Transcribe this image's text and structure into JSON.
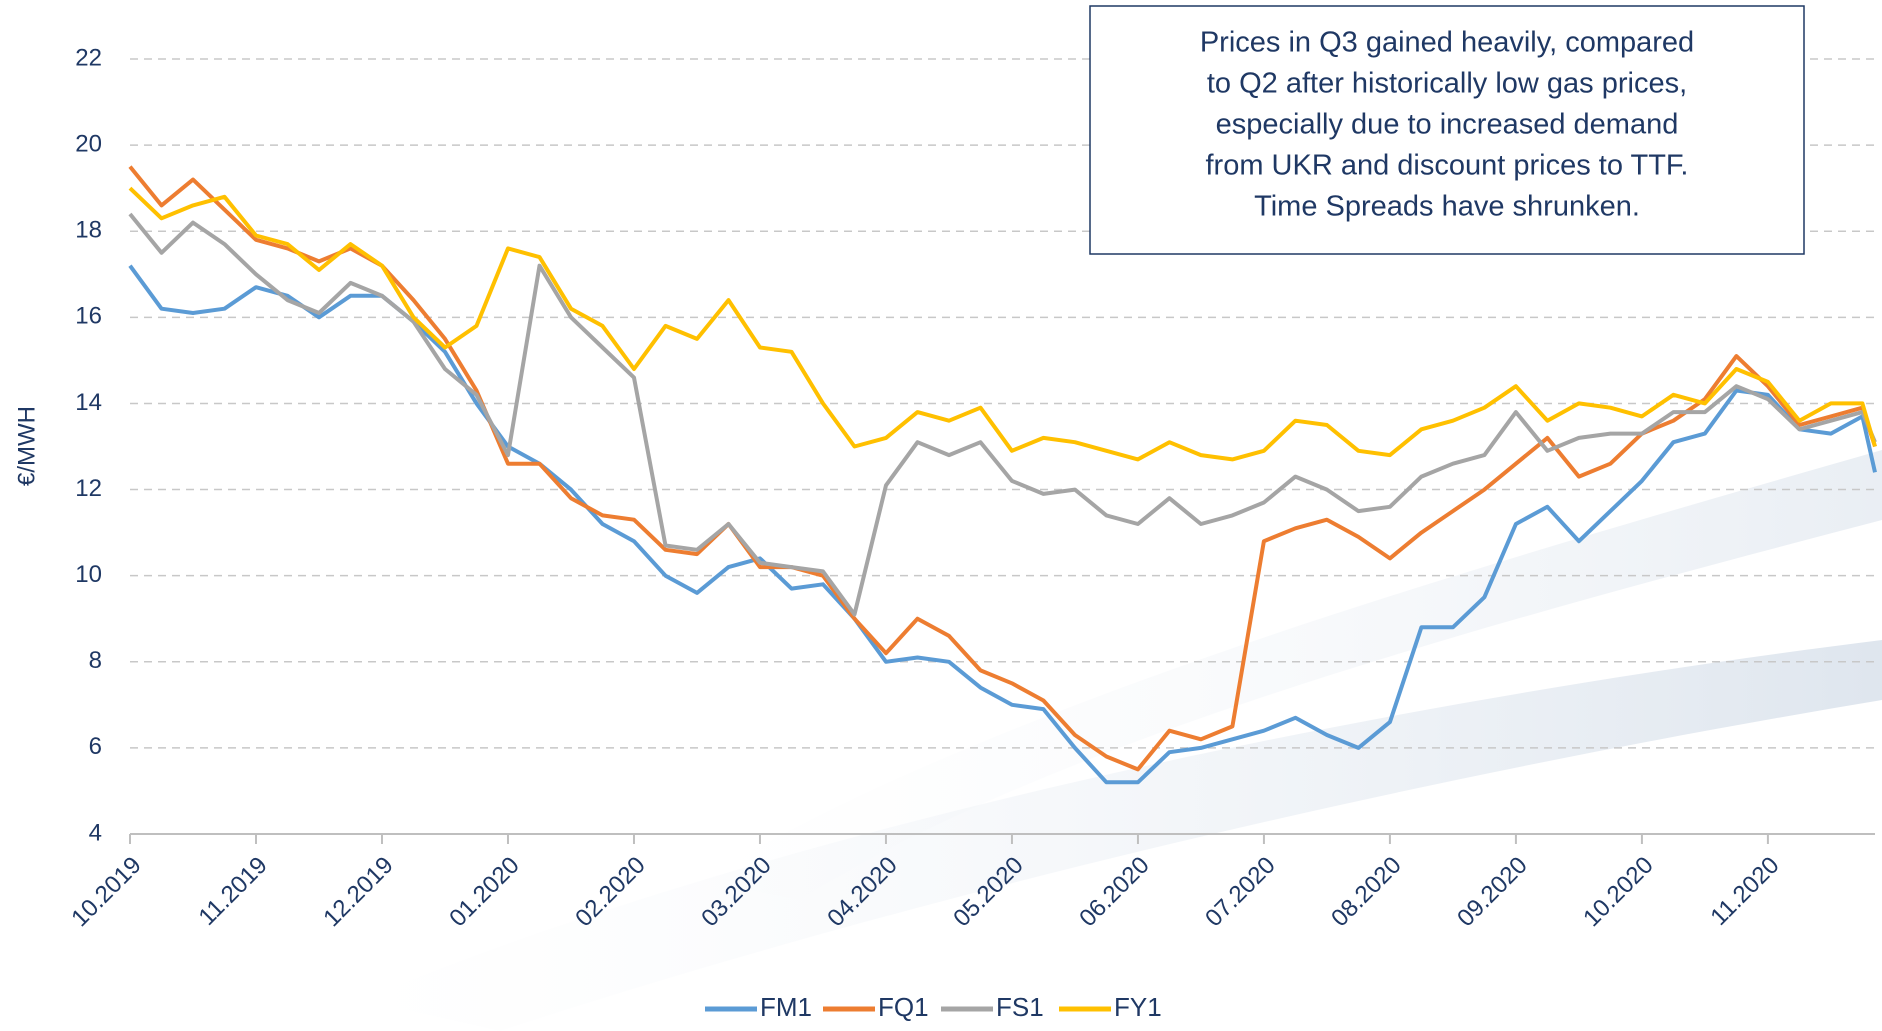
{
  "chart_data": {
    "type": "line",
    "ylabel": "€/MWH",
    "annotation": [
      "Prices in Q3 gained heavily, compared",
      "to Q2 after historically low gas prices,",
      "especially due to increased demand",
      "from UKR and discount prices to TTF.",
      "Time Spreads have shrunken."
    ],
    "x": [
      0,
      0.25,
      0.5,
      0.75,
      1,
      1.25,
      1.5,
      1.75,
      2,
      2.25,
      2.5,
      2.75,
      3,
      3.25,
      3.5,
      3.75,
      4,
      4.25,
      4.5,
      4.75,
      5,
      5.25,
      5.5,
      5.75,
      6,
      6.25,
      6.5,
      6.75,
      7,
      7.25,
      7.5,
      7.75,
      8,
      8.25,
      8.5,
      8.75,
      9,
      9.25,
      9.5,
      9.75,
      10,
      10.25,
      10.5,
      10.75,
      11,
      11.25,
      11.5,
      11.75,
      12,
      12.25,
      12.5,
      12.75,
      13,
      13.25,
      13.5,
      13.75,
      13.85
    ],
    "series": [
      {
        "name": "FM1",
        "color": "#5b9bd5",
        "values": [
          17.2,
          16.2,
          16.1,
          16.2,
          16.7,
          16.5,
          16.0,
          16.5,
          16.5,
          15.9,
          15.2,
          14.0,
          13.0,
          12.6,
          12.0,
          11.2,
          10.8,
          10.0,
          9.6,
          10.2,
          10.4,
          9.7,
          9.8,
          9.0,
          8.0,
          8.1,
          8.0,
          7.4,
          7.0,
          6.9,
          6.0,
          5.2,
          5.2,
          5.9,
          6.0,
          6.2,
          6.4,
          6.7,
          6.3,
          6.0,
          6.6,
          8.8,
          8.8,
          9.5,
          11.2,
          11.6,
          10.8,
          11.5,
          12.2,
          13.1,
          13.3,
          14.3,
          14.2,
          13.4,
          13.3,
          13.7,
          12.4
        ]
      },
      {
        "name": "FQ1",
        "color": "#ed7d31",
        "values": [
          19.5,
          18.6,
          19.2,
          18.5,
          17.8,
          17.6,
          17.3,
          17.6,
          17.2,
          16.4,
          15.5,
          14.3,
          12.6,
          12.6,
          11.8,
          11.4,
          11.3,
          10.6,
          10.5,
          11.2,
          10.2,
          10.2,
          10.0,
          9.0,
          8.2,
          9.0,
          8.6,
          7.8,
          7.5,
          7.1,
          6.3,
          5.8,
          5.5,
          6.4,
          6.2,
          6.5,
          10.8,
          11.1,
          11.3,
          10.9,
          10.4,
          11.0,
          11.5,
          12.0,
          12.6,
          13.2,
          12.3,
          12.6,
          13.3,
          13.6,
          14.1,
          15.1,
          14.4,
          13.5,
          13.7,
          13.9,
          13.0
        ]
      },
      {
        "name": "FS1",
        "color": "#a5a5a5",
        "values": [
          18.4,
          17.5,
          18.2,
          17.7,
          17.0,
          16.4,
          16.1,
          16.8,
          16.5,
          15.9,
          14.8,
          14.2,
          12.8,
          17.2,
          16.0,
          15.3,
          14.6,
          10.7,
          10.6,
          11.2,
          10.3,
          10.2,
          10.1,
          9.1,
          12.1,
          13.1,
          12.8,
          13.1,
          12.2,
          11.9,
          12.0,
          11.4,
          11.2,
          11.8,
          11.2,
          11.4,
          11.7,
          12.3,
          12.0,
          11.5,
          11.6,
          12.3,
          12.6,
          12.8,
          13.8,
          12.9,
          13.2,
          13.3,
          13.3,
          13.8,
          13.8,
          14.4,
          14.1,
          13.4,
          13.6,
          13.8,
          13.1
        ]
      },
      {
        "name": "FY1",
        "color": "#ffc000",
        "values": [
          19.0,
          18.3,
          18.6,
          18.8,
          17.9,
          17.7,
          17.1,
          17.7,
          17.2,
          16.0,
          15.3,
          15.8,
          17.6,
          17.4,
          16.2,
          15.8,
          14.8,
          15.8,
          15.5,
          16.4,
          15.3,
          15.2,
          14.0,
          13.0,
          13.2,
          13.8,
          13.6,
          13.9,
          12.9,
          13.2,
          13.1,
          12.9,
          12.7,
          13.1,
          12.8,
          12.7,
          12.9,
          13.6,
          13.5,
          12.9,
          12.8,
          13.4,
          13.6,
          13.9,
          14.4,
          13.6,
          14.0,
          13.9,
          13.7,
          14.2,
          14.0,
          14.8,
          14.5,
          13.6,
          14.0,
          14.0,
          13.0
        ]
      }
    ],
    "xlim": [
      0,
      13.85
    ],
    "xticks": [
      {
        "value": 0,
        "label": "10.2019"
      },
      {
        "value": 1,
        "label": "11.2019"
      },
      {
        "value": 2,
        "label": "12.2019"
      },
      {
        "value": 3,
        "label": "01.2020"
      },
      {
        "value": 4,
        "label": "02.2020"
      },
      {
        "value": 5,
        "label": "03.2020"
      },
      {
        "value": 6,
        "label": "04.2020"
      },
      {
        "value": 7,
        "label": "05.2020"
      },
      {
        "value": 8,
        "label": "06.2020"
      },
      {
        "value": 9,
        "label": "07.2020"
      },
      {
        "value": 10,
        "label": "08.2020"
      },
      {
        "value": 11,
        "label": "09.2020"
      },
      {
        "value": 12,
        "label": "10.2020"
      },
      {
        "value": 13,
        "label": "11.2020"
      }
    ],
    "ylim": [
      4,
      22
    ],
    "yticks": [
      4,
      6,
      8,
      10,
      12,
      14,
      16,
      18,
      20,
      22
    ],
    "grid": true,
    "legend": "bottom"
  }
}
